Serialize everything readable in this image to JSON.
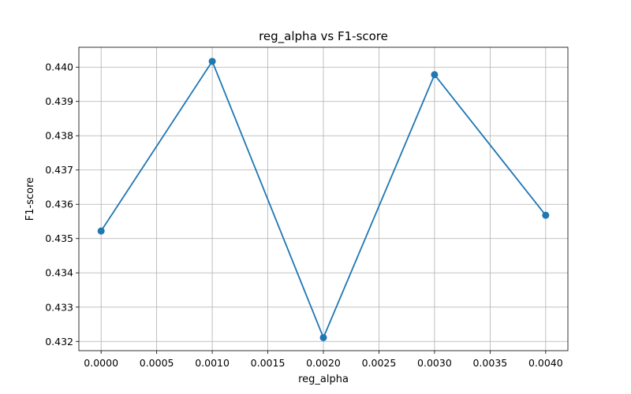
{
  "chart_data": {
    "type": "line",
    "title": "reg_alpha vs F1-score",
    "xlabel": "reg_alpha",
    "ylabel": "F1-score",
    "grid": true,
    "xlim": [
      -0.0002,
      0.0042
    ],
    "ylim": [
      0.43173,
      0.44058
    ],
    "xticks": [
      0.0,
      0.0005,
      0.001,
      0.0015,
      0.002,
      0.0025,
      0.003,
      0.0035,
      0.004
    ],
    "xtick_labels": [
      "0.0000",
      "0.0005",
      "0.0010",
      "0.0015",
      "0.0020",
      "0.0025",
      "0.0030",
      "0.0035",
      "0.0040"
    ],
    "yticks": [
      0.432,
      0.433,
      0.434,
      0.435,
      0.436,
      0.437,
      0.438,
      0.439,
      0.44
    ],
    "ytick_labels": [
      "0.432",
      "0.433",
      "0.434",
      "0.435",
      "0.436",
      "0.437",
      "0.438",
      "0.439",
      "0.440"
    ],
    "series": [
      {
        "color": "#1f77b4",
        "marker": "circle",
        "x": [
          0.0,
          0.001,
          0.002,
          0.003,
          0.004
        ],
        "y": [
          0.43522,
          0.44017,
          0.43211,
          0.43978,
          0.43568
        ]
      }
    ]
  }
}
